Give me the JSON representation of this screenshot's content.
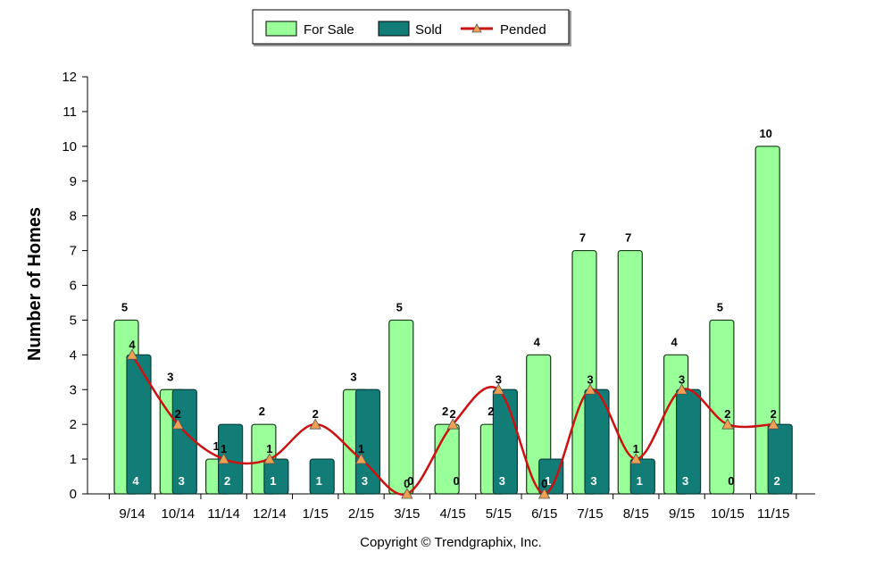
{
  "chart_data": {
    "type": "bar",
    "ylabel": "Number of Homes",
    "xlabel": "",
    "ylim": [
      0,
      12
    ],
    "yticks": [
      0,
      1,
      2,
      3,
      4,
      5,
      6,
      7,
      8,
      9,
      10,
      11,
      12
    ],
    "categories": [
      "9/14",
      "10/14",
      "11/14",
      "12/14",
      "1/15",
      "2/15",
      "3/15",
      "4/15",
      "5/15",
      "6/15",
      "7/15",
      "8/15",
      "9/15",
      "10/15",
      "11/15"
    ],
    "series": [
      {
        "name": "For Sale",
        "type": "bar",
        "color": "#99ff99",
        "values": [
          5,
          3,
          1,
          2,
          0,
          3,
          5,
          2,
          2,
          4,
          7,
          7,
          4,
          5,
          10
        ]
      },
      {
        "name": "Sold",
        "type": "bar",
        "color": "#127d77",
        "values": [
          4,
          3,
          2,
          1,
          1,
          3,
          0,
          0,
          3,
          1,
          3,
          1,
          3,
          0,
          2
        ]
      },
      {
        "name": "Pended",
        "type": "line",
        "color": "#cc1111",
        "marker_color": "#f0a050",
        "values": [
          4,
          2,
          1,
          1,
          2,
          1,
          0,
          2,
          3,
          0,
          3,
          1,
          3,
          2,
          2
        ]
      }
    ],
    "legend": "top-center",
    "grid": false
  },
  "footer": {
    "copyright": "Copyright © Trendgraphix, Inc."
  }
}
